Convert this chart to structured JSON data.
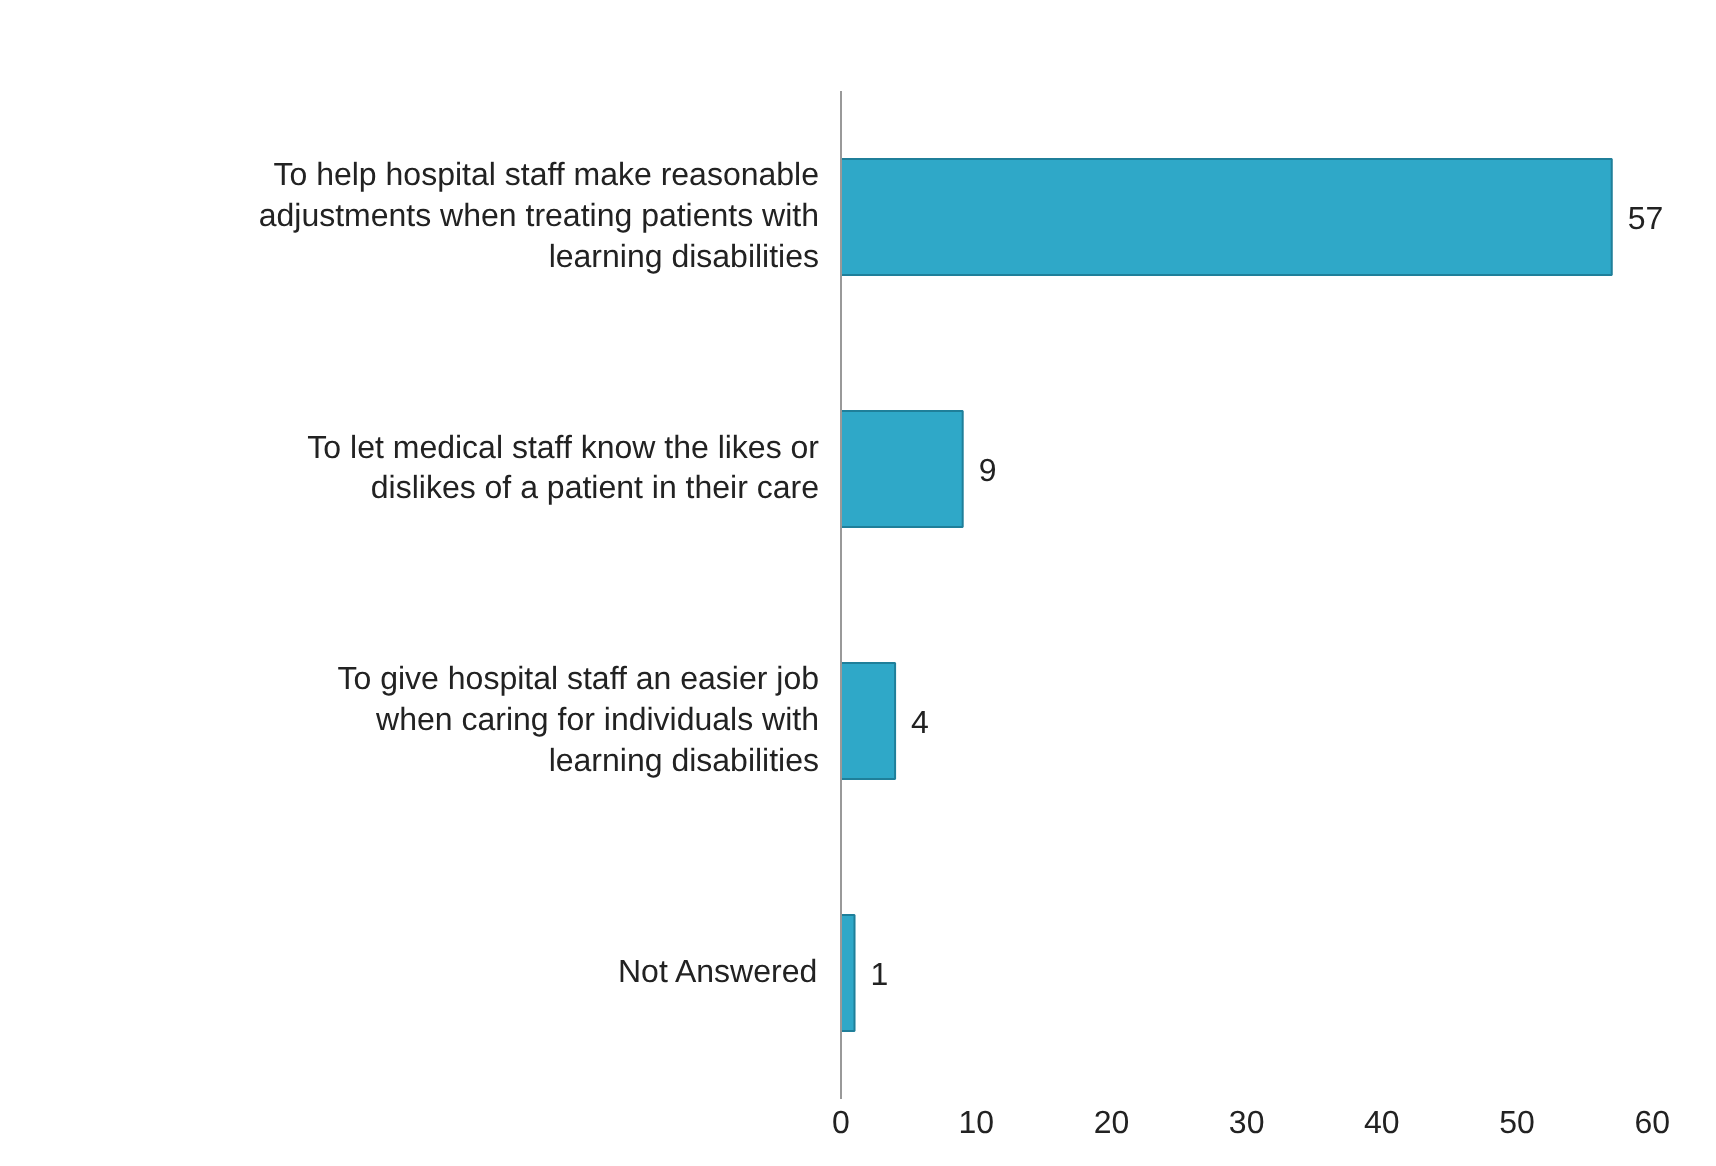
{
  "chart_data": {
    "type": "bar",
    "orientation": "horizontal",
    "categories": [
      "To help hospital staff make reasonable adjustments when treating patients with learning disabilities",
      "To let medical staff know the likes or dislikes of a patient in their care",
      "To give hospital staff an easier job when caring for individuals with learning disabilities",
      "Not Answered"
    ],
    "values": [
      57,
      9,
      4,
      1
    ],
    "color": "#2fa8c8",
    "xlim": [
      0,
      60
    ],
    "xticks": [
      0,
      10,
      20,
      30,
      40,
      50,
      60
    ],
    "grid": false,
    "data_labels": true
  }
}
